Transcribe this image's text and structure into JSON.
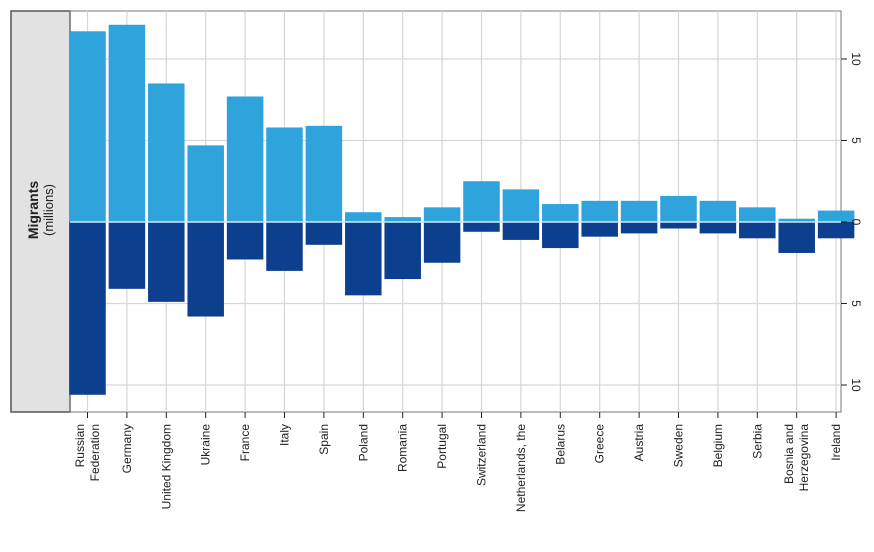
{
  "chart_data": {
    "type": "bar",
    "ylabel": "Migrants",
    "ylabel_unit": "(millions)",
    "categories": [
      [
        "Russian",
        "Federation"
      ],
      [
        "Germany"
      ],
      [
        "United Kingdom"
      ],
      [
        "Ukraine"
      ],
      [
        "France"
      ],
      [
        "Italy"
      ],
      [
        "Spain"
      ],
      [
        "Poland"
      ],
      [
        "Romania"
      ],
      [
        "Portugal"
      ],
      [
        "Switzerland"
      ],
      [
        "Netherlands, the"
      ],
      [
        "Belarus"
      ],
      [
        "Greece"
      ],
      [
        "Austria"
      ],
      [
        "Sweden"
      ],
      [
        "Belgium"
      ],
      [
        "Serbia"
      ],
      [
        "Bosnia and",
        "Herzegovina"
      ],
      [
        "Ireland"
      ]
    ],
    "series": [
      {
        "values": [
          11.7,
          12.1,
          8.5,
          4.7,
          7.7,
          5.8,
          5.9,
          0.6,
          0.3,
          0.9,
          2.5,
          2.0,
          1.1,
          1.3,
          1.3,
          1.6,
          1.3,
          0.9,
          0.2,
          0.7
        ],
        "color": "#2ea3dc"
      },
      {
        "values": [
          10.6,
          4.1,
          4.9,
          5.8,
          2.3,
          3.0,
          1.4,
          4.5,
          3.5,
          2.5,
          0.6,
          1.1,
          1.6,
          0.9,
          0.7,
          0.4,
          0.7,
          1.0,
          1.9,
          1.0
        ],
        "color": "#0d3f8f"
      }
    ],
    "yticks": [
      "10",
      "5",
      "0",
      "5",
      "10"
    ],
    "ylim": [
      -11,
      13
    ],
    "grid": true
  }
}
